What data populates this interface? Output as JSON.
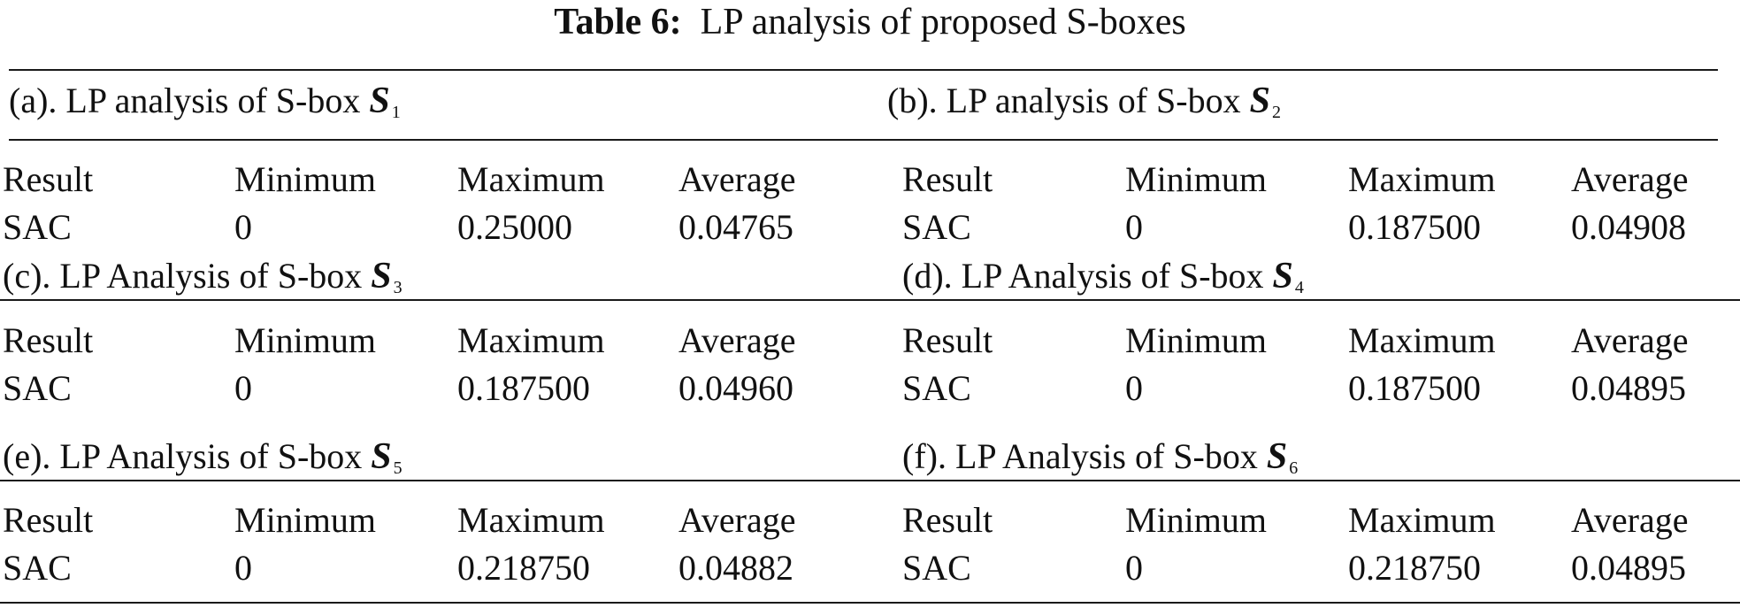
{
  "caption": {
    "label": "Table 6:",
    "text": "LP analysis of proposed S-boxes"
  },
  "panels": [
    {
      "title_prefix": "(a). LP analysis of S-box",
      "symbol": "S",
      "subscript": "1",
      "header": [
        "Result",
        "Minimum",
        "Maximum",
        "Average"
      ],
      "row": [
        "SAC",
        "0",
        "0.25000",
        "0.04765"
      ]
    },
    {
      "title_prefix": "(b). LP analysis of S-box",
      "symbol": "S",
      "subscript": "2",
      "header": [
        "Result",
        "Minimum",
        "Maximum",
        "Average"
      ],
      "row": [
        "SAC",
        "0",
        "0.187500",
        "0.04908"
      ]
    },
    {
      "title_prefix": "(c). LP Analysis of S-box",
      "symbol": "S",
      "subscript": "3",
      "header": [
        "Result",
        "Minimum",
        "Maximum",
        "Average"
      ],
      "row": [
        "SAC",
        "0",
        "0.187500",
        "0.04960"
      ]
    },
    {
      "title_prefix": "(d). LP Analysis of S-box",
      "symbol": "S",
      "subscript": "4",
      "header": [
        "Result",
        "Minimum",
        "Maximum",
        "Average"
      ],
      "row": [
        "SAC",
        "0",
        "0.187500",
        "0.04895"
      ]
    },
    {
      "title_prefix": "(e). LP Analysis of S-box",
      "symbol": "S",
      "subscript": "5",
      "header": [
        "Result",
        "Minimum",
        "Maximum",
        "Average"
      ],
      "row": [
        "SAC",
        "0",
        "0.218750",
        "0.04882"
      ]
    },
    {
      "title_prefix": "(f). LP Analysis of S-box",
      "symbol": "S",
      "subscript": "6",
      "header": [
        "Result",
        "Minimum",
        "Maximum",
        "Average"
      ],
      "row": [
        "SAC",
        "0",
        "0.218750",
        "0.04895"
      ]
    }
  ]
}
